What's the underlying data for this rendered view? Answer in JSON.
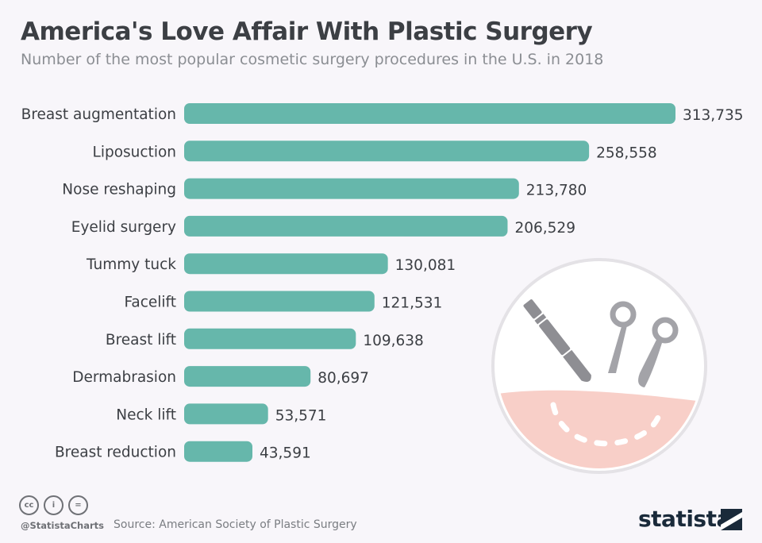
{
  "header": {
    "title": "America's Love Affair With Plastic Surgery",
    "subtitle": "Number of the most popular cosmetic surgery procedures in the U.S. in 2018"
  },
  "chart_data": {
    "type": "bar",
    "orientation": "horizontal",
    "title": "America's Love Affair With Plastic Surgery",
    "subtitle": "Number of the most popular cosmetic surgery procedures in the U.S. in 2018",
    "categories": [
      "Breast augmentation",
      "Liposuction",
      "Nose reshaping",
      "Eyelid surgery",
      "Tummy tuck",
      "Facelift",
      "Breast lift",
      "Dermabrasion",
      "Neck lift",
      "Breast reduction"
    ],
    "values": [
      313735,
      258558,
      213780,
      206529,
      130081,
      121531,
      109638,
      80697,
      53571,
      43591
    ],
    "value_labels": [
      "313,735",
      "258,558",
      "213,780",
      "206,529",
      "130,081",
      "121,531",
      "109,638",
      "80,697",
      "53,571",
      "43,591"
    ],
    "xlim": [
      0,
      313735
    ],
    "grid": false,
    "legend": "none",
    "bar_color": "#66b7ab"
  },
  "illustration": {
    "name": "surgery-illustration",
    "skin_color": "#f8cfc8",
    "tool_color": "#8e8e93"
  },
  "footer": {
    "icons": [
      "cc-icon",
      "by-icon",
      "nd-icon"
    ],
    "cc_glyph": "cc",
    "by_glyph": "i",
    "nd_glyph": "=",
    "handle": "@StatistaCharts",
    "source": "Source: American Society of Plastic Surgery",
    "brand": "statista"
  }
}
